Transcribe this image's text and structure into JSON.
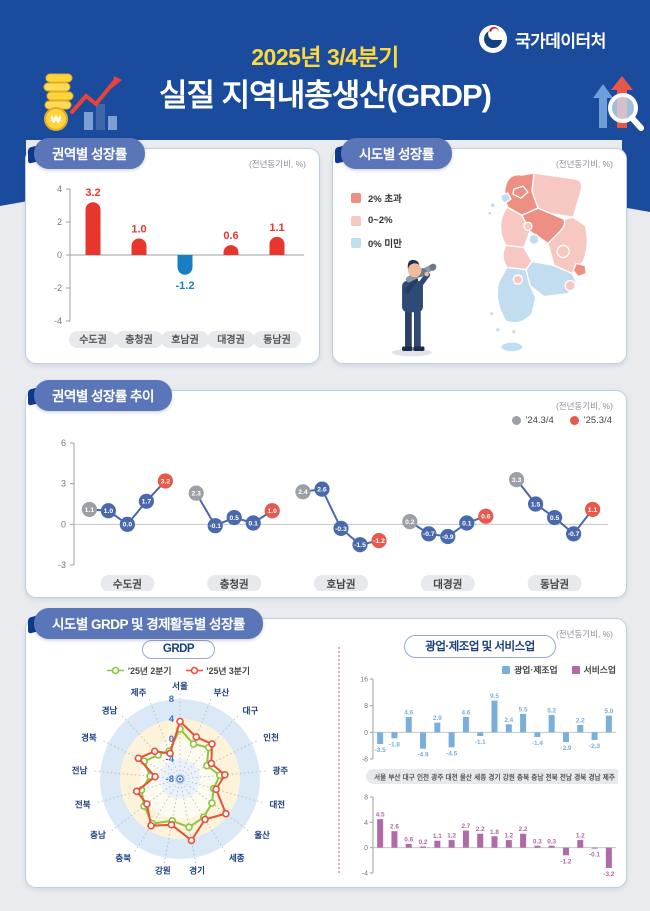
{
  "header": {
    "agency": "국가데이터처",
    "period": "2025년 3/4분기",
    "title": "실질 지역내총생산(GRDP)"
  },
  "unit_note": "(전년동기비, %)",
  "colors": {
    "header_bg": "#1a4b9c",
    "accent_yellow": "#ffd93b",
    "ribbon_bg": "#5b76b8",
    "positive_red": "#e8362d",
    "negative_blue": "#1a7fc1",
    "trend_gray": "#9aa0a6",
    "trend_blue": "#4a69ad",
    "trend_red": "#e8584c",
    "radar_green": "#8cc63e",
    "radar_red": "#e8503c",
    "mfg_blue": "#7aaedb",
    "svc_purple": "#b06aa5",
    "map_over2": "#ee8f84",
    "map_0to2": "#f6c8c1",
    "map_under0": "#c3ddf0"
  },
  "panels": {
    "regional": {
      "title": "권역별 성장률"
    },
    "map": {
      "title": "시도별 성장률",
      "legend": [
        {
          "label": "2% 초과",
          "key": "over2"
        },
        {
          "label": "0~2%",
          "key": "0to2"
        },
        {
          "label": "0% 미만",
          "key": "under0"
        }
      ],
      "regions": {
        "서울": "over2",
        "인천": "under0",
        "경기": "over2",
        "강원": "0to2",
        "충북": "over2",
        "충남": "0to2",
        "세종": "0to2",
        "대전": "under0",
        "전북": "0to2",
        "광주": "0to2",
        "전남": "under0",
        "경북": "0to2",
        "대구": "0to2",
        "울산": "over2",
        "부산": "0to2",
        "경남": "under0",
        "제주": "under0"
      }
    },
    "trend": {
      "title": "권역별 성장률 추이",
      "legend": [
        {
          "label": "'24.3/4",
          "series": "prev"
        },
        {
          "label": "'25.3/4",
          "series": "curr"
        }
      ]
    },
    "sido": {
      "title": "시도별 GRDP 및 경제활동별 성장률",
      "grdp_subtitle": "GRDP",
      "grdp_legend": [
        {
          "label": "'25년 2분기",
          "series": "q2"
        },
        {
          "label": "'25년 3분기",
          "series": "q3"
        }
      ],
      "industry_subtitle": "광업·제조업 및 서비스업",
      "industry_legend": [
        {
          "label": "광업·제조업",
          "series": "mfg"
        },
        {
          "label": "서비스업",
          "series": "svc"
        }
      ]
    }
  },
  "chart_data": [
    {
      "id": "regional_bar",
      "type": "bar",
      "title": "권역별 성장률",
      "unit": "전년동기비, %",
      "categories": [
        "수도권",
        "충청권",
        "호남권",
        "대경권",
        "동남권"
      ],
      "values": [
        3.2,
        1.0,
        -1.2,
        0.6,
        1.1
      ],
      "ylim": [
        -4,
        4
      ],
      "yticks": [
        4,
        2,
        0,
        -2,
        -4
      ],
      "grid": false
    },
    {
      "id": "sido_map",
      "type": "map",
      "title": "시도별 성장률",
      "unit": "전년동기비, %",
      "classes": [
        "2% 초과",
        "0~2%",
        "0% 미만"
      ]
    },
    {
      "id": "regional_trend",
      "type": "line",
      "title": "권역별 성장률 추이",
      "unit": "전년동기비, %",
      "legend": [
        "'24.3/4",
        "'25.3/4"
      ],
      "ylim": [
        -3,
        6
      ],
      "yticks": [
        6,
        3,
        0,
        -3
      ],
      "groups": [
        {
          "name": "수도권",
          "values": [
            1.1,
            1.0,
            0.0,
            1.7,
            3.2
          ]
        },
        {
          "name": "충청권",
          "values": [
            2.3,
            -0.1,
            0.5,
            0.1,
            1.0
          ]
        },
        {
          "name": "호남권",
          "values": [
            2.4,
            2.6,
            -0.3,
            -1.5,
            -1.2
          ]
        },
        {
          "name": "대경권",
          "values": [
            0.2,
            -0.7,
            -0.9,
            0.1,
            0.6
          ]
        },
        {
          "name": "동남권",
          "values": [
            3.3,
            1.5,
            0.5,
            -0.7,
            1.1
          ]
        }
      ]
    },
    {
      "id": "grdp_radar",
      "type": "radar",
      "title": "GRDP",
      "rticks": [
        8,
        4,
        0,
        -4,
        -8
      ],
      "categories": [
        "서울",
        "부산",
        "대구",
        "인천",
        "광주",
        "대전",
        "울산",
        "세종",
        "경기",
        "강원",
        "충북",
        "충남",
        "전북",
        "전남",
        "경북",
        "경남",
        "제주"
      ],
      "series": [
        {
          "name": "'25년 2분기",
          "values": [
            2.0,
            -0.5,
            0.5,
            -2.0,
            0.0,
            -1.0,
            0.0,
            1.0,
            1.8,
            0.5,
            2.5,
            1.0,
            0.0,
            -2.0,
            0.0,
            -1.5,
            -2.0
          ]
        },
        {
          "name": "'25년 3분기",
          "values": [
            3.5,
            1.0,
            1.5,
            -1.0,
            1.0,
            -0.5,
            3.5,
            1.5,
            4.5,
            1.3,
            3.0,
            0.3,
            1.0,
            -3.0,
            1.3,
            -0.5,
            -2.5
          ]
        }
      ]
    },
    {
      "id": "industry_bars",
      "type": "bar",
      "title": "광업·제조업 및 서비스업",
      "unit": "전년동기비, %",
      "categories": [
        "서울",
        "부산",
        "대구",
        "인천",
        "광주",
        "대전",
        "울산",
        "세종",
        "경기",
        "강원",
        "충북",
        "충남",
        "전북",
        "전남",
        "경북",
        "경남",
        "제주"
      ],
      "series": [
        {
          "name": "광업·제조업",
          "ylim": [
            -8,
            16
          ],
          "yticks": [
            16,
            8,
            0,
            -8
          ],
          "values": [
            -3.5,
            -1.8,
            4.6,
            -4.9,
            2.9,
            -4.5,
            4.6,
            -1.1,
            9.5,
            2.4,
            5.5,
            -1.4,
            5.2,
            -2.9,
            2.2,
            -2.3,
            5.0
          ]
        },
        {
          "name": "서비스업",
          "ylim": [
            -4,
            8
          ],
          "yticks": [
            8,
            4,
            0,
            -4
          ],
          "values": [
            4.5,
            2.6,
            0.6,
            0.2,
            1.1,
            1.2,
            2.7,
            2.2,
            1.8,
            1.2,
            2.2,
            0.3,
            0.3,
            -1.2,
            1.2,
            -0.1,
            -3.2
          ]
        }
      ]
    }
  ]
}
